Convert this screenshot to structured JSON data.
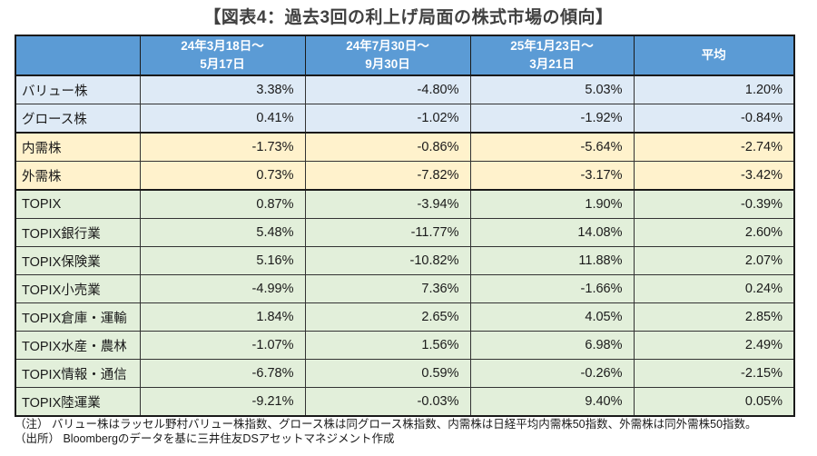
{
  "title": "【図表4：過去3回の利上げ局面の株式市場の傾向】",
  "colors": {
    "title_color": "#404040",
    "header_bg": "#5B9BD5",
    "row_blue": "#DEEAF6",
    "row_yellow": "#FFF2CC",
    "row_green": "#E2EFDA",
    "border_dark": "#1a1a1a",
    "border_thin": "#333333"
  },
  "table": {
    "headers": [
      {
        "line1": "",
        "line2": ""
      },
      {
        "line1": "24年3月18日～",
        "line2": "5月17日"
      },
      {
        "line1": "24年7月30日～",
        "line2": "9月30日"
      },
      {
        "line1": "25年1月23日～",
        "line2": "3月21日"
      },
      {
        "line1": "平均",
        "line2": ""
      }
    ],
    "rows": [
      {
        "label": "バリュー株",
        "group": "blue",
        "group_start": false,
        "values": [
          "3.38%",
          "-4.80%",
          "5.03%",
          "1.20%"
        ]
      },
      {
        "label": "グロース株",
        "group": "blue",
        "group_start": false,
        "values": [
          "0.41%",
          "-1.02%",
          "-1.92%",
          "-0.84%"
        ]
      },
      {
        "label": "内需株",
        "group": "yellow",
        "group_start": true,
        "values": [
          "-1.73%",
          "-0.86%",
          "-5.64%",
          "-2.74%"
        ]
      },
      {
        "label": "外需株",
        "group": "yellow",
        "group_start": false,
        "values": [
          "0.73%",
          "-7.82%",
          "-3.17%",
          "-3.42%"
        ]
      },
      {
        "label": "TOPIX",
        "group": "green",
        "group_start": true,
        "values": [
          "0.87%",
          "-3.94%",
          "1.90%",
          "-0.39%"
        ]
      },
      {
        "label": "TOPIX銀行業",
        "group": "green",
        "group_start": false,
        "values": [
          "5.48%",
          "-11.77%",
          "14.08%",
          "2.60%"
        ]
      },
      {
        "label": "TOPIX保険業",
        "group": "green",
        "group_start": false,
        "values": [
          "5.16%",
          "-10.82%",
          "11.88%",
          "2.07%"
        ]
      },
      {
        "label": "TOPIX小売業",
        "group": "green",
        "group_start": false,
        "values": [
          "-4.99%",
          "7.36%",
          "-1.66%",
          "0.24%"
        ]
      },
      {
        "label": "TOPIX倉庫・運輸",
        "group": "green",
        "group_start": false,
        "values": [
          "1.84%",
          "2.65%",
          "4.05%",
          "2.85%"
        ]
      },
      {
        "label": "TOPIX水産・農林",
        "group": "green",
        "group_start": false,
        "values": [
          "-1.07%",
          "1.56%",
          "6.98%",
          "2.49%"
        ]
      },
      {
        "label": "TOPIX情報・通信",
        "group": "green",
        "group_start": false,
        "values": [
          "-6.78%",
          "0.59%",
          "-0.26%",
          "-2.15%"
        ]
      },
      {
        "label": "TOPIX陸運業",
        "group": "green",
        "group_start": false,
        "values": [
          "-9.21%",
          "-0.03%",
          "9.40%",
          "0.05%"
        ]
      }
    ]
  },
  "notes": {
    "note": "（注） バリュー株はラッセル野村バリュー株指数、グロース株は同グロース株指数、内需株は日経平均内需株50指数、外需株は同外需株50指数。",
    "source": "（出所） Bloombergのデータを基に三井住友DSアセットマネジメント作成"
  },
  "chart_data": {
    "type": "table",
    "title": "【図表4：過去3回の利上げ局面の株式市場の傾向】",
    "categories": [
      "バリュー株",
      "グロース株",
      "内需株",
      "外需株",
      "TOPIX",
      "TOPIX銀行業",
      "TOPIX保険業",
      "TOPIX小売業",
      "TOPIX倉庫・運輸",
      "TOPIX水産・農林",
      "TOPIX情報・通信",
      "TOPIX陸運業"
    ],
    "series": [
      {
        "name": "24年3月18日～5月17日",
        "values": [
          3.38,
          0.41,
          -1.73,
          0.73,
          0.87,
          5.48,
          5.16,
          -4.99,
          1.84,
          -1.07,
          -6.78,
          -9.21
        ]
      },
      {
        "name": "24年7月30日～9月30日",
        "values": [
          -4.8,
          -1.02,
          -0.86,
          -7.82,
          -3.94,
          -11.77,
          -10.82,
          7.36,
          2.65,
          1.56,
          0.59,
          -0.03
        ]
      },
      {
        "name": "25年1月23日～3月21日",
        "values": [
          5.03,
          -1.92,
          -5.64,
          -3.17,
          1.9,
          14.08,
          11.88,
          -1.66,
          4.05,
          6.98,
          -0.26,
          9.4
        ]
      },
      {
        "name": "平均",
        "values": [
          1.2,
          -0.84,
          -2.74,
          -3.42,
          -0.39,
          2.6,
          2.07,
          0.24,
          2.85,
          2.49,
          -2.15,
          0.05
        ]
      }
    ],
    "unit": "%"
  }
}
